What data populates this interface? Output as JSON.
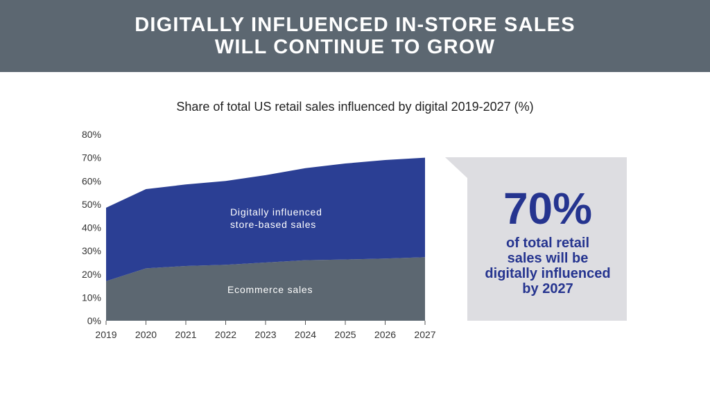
{
  "header": {
    "title_line1": "DIGITALLY INFLUENCED IN-STORE SALES",
    "title_line2": "WILL CONTINUE TO GROW"
  },
  "colors": {
    "banner": "#5c6771",
    "store_area": "#2b3f94",
    "ecommerce_area": "#5c6771",
    "callout_bg": "#dddde1",
    "accent": "#25348f"
  },
  "chart_data": {
    "type": "area",
    "title": "Share of total US retail sales influenced by digital 2019-2027 (%)",
    "x": [
      "2019",
      "2020",
      "2021",
      "2022",
      "2023",
      "2024",
      "2025",
      "2026",
      "2027"
    ],
    "y_ticks": [
      "0%",
      "10%",
      "20%",
      "30%",
      "40%",
      "50%",
      "60%",
      "70%",
      "80%"
    ],
    "ylim": [
      0,
      80
    ],
    "stacked": true,
    "series": [
      {
        "name": "Ecommerce sales",
        "values": [
          17,
          22.5,
          23.5,
          24,
          25,
          26,
          26.3,
          26.7,
          27.3
        ]
      },
      {
        "name": "Digitally influenced store-based sales",
        "label_lines": [
          "Digitally influenced",
          "store-based sales"
        ],
        "values": [
          31.5,
          34,
          35,
          36,
          37.5,
          39.5,
          41.2,
          42.3,
          42.7
        ]
      }
    ]
  },
  "callout": {
    "value": "70%",
    "line1": "of total retail",
    "line2": "sales will be",
    "line3": "digitally influenced",
    "line4": "by 2027"
  }
}
